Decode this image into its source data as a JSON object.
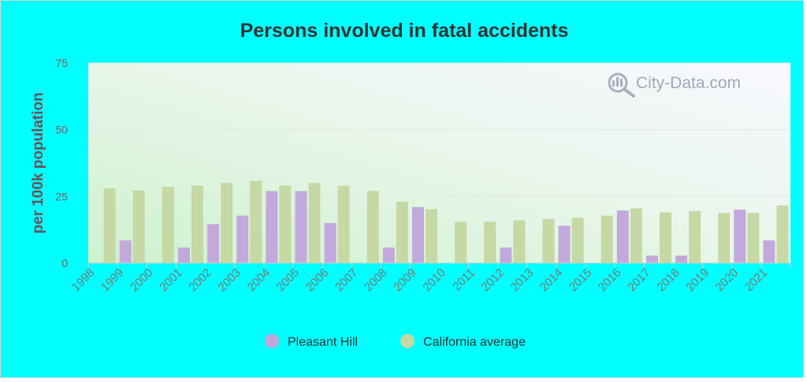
{
  "chart_data": {
    "type": "bar",
    "title": "Persons involved in fatal accidents",
    "xlabel": "",
    "ylabel": "per 100k population",
    "ylim": [
      0,
      75
    ],
    "yticks": [
      0,
      25,
      50,
      75
    ],
    "grid": true,
    "legend_position": "bottom-center",
    "categories": [
      "1998",
      "1999",
      "2000",
      "2001",
      "2002",
      "2003",
      "2004",
      "2005",
      "2006",
      "2007",
      "2008",
      "2009",
      "2010",
      "2011",
      "2012",
      "2013",
      "2014",
      "2015",
      "2016",
      "2017",
      "2018",
      "2019",
      "2020",
      "2021"
    ],
    "series": [
      {
        "name": "Pleasant Hill",
        "color": "#c3a8dc",
        "values": [
          null,
          8.5,
          null,
          5.8,
          14.6,
          17.8,
          27.0,
          27.0,
          15.0,
          null,
          5.8,
          21.0,
          null,
          null,
          5.8,
          null,
          14.0,
          null,
          19.7,
          2.8,
          2.8,
          null,
          20.0,
          8.5
        ]
      },
      {
        "name": "California average",
        "color": "#c6d8a4",
        "values": [
          28.0,
          27.2,
          28.5,
          29.0,
          30.0,
          30.8,
          29.0,
          30.0,
          29.0,
          27.0,
          23.0,
          20.2,
          15.5,
          15.5,
          16.0,
          16.5,
          17.0,
          17.8,
          20.5,
          19.0,
          19.5,
          18.8,
          18.8,
          21.6
        ]
      }
    ]
  },
  "watermark": {
    "text": "City-Data.com",
    "icon": "city-data-magnifier-icon"
  },
  "colors": {
    "background": "#00ffff",
    "title": "#333333"
  }
}
